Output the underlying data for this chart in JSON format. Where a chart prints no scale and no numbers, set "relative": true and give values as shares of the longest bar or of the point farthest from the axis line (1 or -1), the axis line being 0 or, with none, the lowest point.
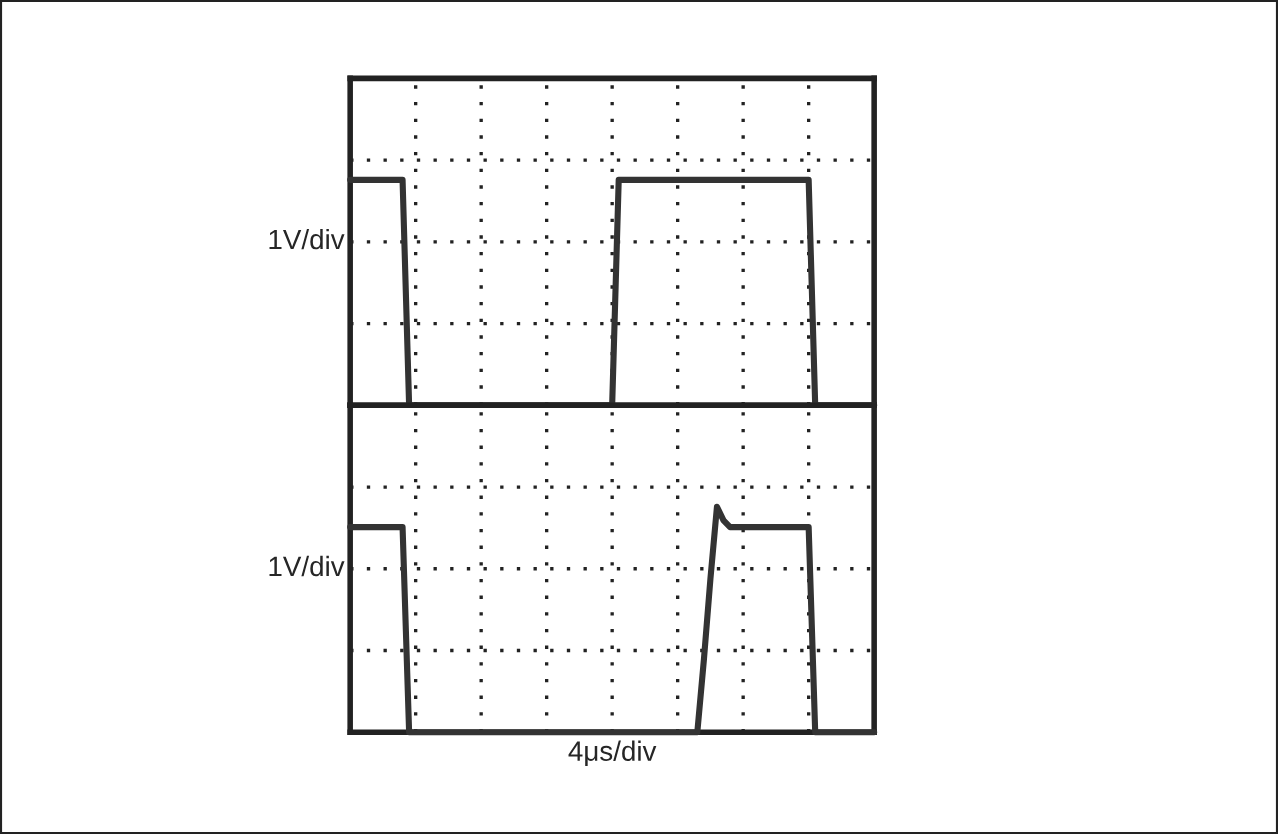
{
  "chart_data": [
    {
      "type": "line",
      "relative": true,
      "ylabel": "1V/div",
      "grid": true,
      "tick_labels": false,
      "categories": [
        null,
        null,
        null,
        null,
        null,
        null,
        null,
        null,
        null,
        null,
        null,
        null,
        null,
        null,
        null,
        null,
        null,
        null,
        null,
        null,
        null,
        null,
        null,
        null,
        null,
        null,
        null,
        null,
        null,
        null,
        null,
        null,
        null,
        null,
        null,
        null,
        null,
        null,
        null,
        null,
        null,
        null,
        null,
        null,
        null,
        null,
        null,
        null,
        null,
        null,
        null,
        null,
        null,
        null,
        null,
        null,
        null,
        null,
        null,
        null,
        null,
        null,
        null,
        null,
        null,
        null,
        null,
        null,
        null,
        null,
        null,
        null,
        null,
        null,
        null,
        null,
        null,
        null,
        null,
        null,
        null
      ],
      "series": [
        {
          "color": "#333333",
          "values": [
            1,
            1,
            1,
            1,
            1,
            1,
            1,
            1,
            1,
            0,
            0,
            0,
            0,
            0,
            0,
            0,
            0,
            0,
            0,
            0,
            0,
            0,
            0,
            0,
            0,
            0,
            0,
            0,
            0,
            0,
            0,
            0,
            0,
            0,
            0,
            0,
            0,
            0,
            0,
            0,
            0,
            1,
            1,
            1,
            1,
            1,
            1,
            1,
            1,
            1,
            1,
            1,
            1,
            1,
            1,
            1,
            1,
            1,
            1,
            1,
            1,
            1,
            1,
            1,
            1,
            1,
            1,
            1,
            1,
            1,
            1,
            0,
            0,
            0,
            0,
            0,
            0,
            0,
            0,
            0,
            0
          ]
        }
      ]
    },
    {
      "type": "line",
      "relative": true,
      "ylabel": "1V/div",
      "xlabel": "4μs/div",
      "grid": true,
      "tick_labels": false,
      "categories": [
        null,
        null,
        null,
        null,
        null,
        null,
        null,
        null,
        null,
        null,
        null,
        null,
        null,
        null,
        null,
        null,
        null,
        null,
        null,
        null,
        null,
        null,
        null,
        null,
        null,
        null,
        null,
        null,
        null,
        null,
        null,
        null,
        null,
        null,
        null,
        null,
        null,
        null,
        null,
        null,
        null,
        null,
        null,
        null,
        null,
        null,
        null,
        null,
        null,
        null,
        null,
        null,
        null,
        null,
        null,
        null,
        null,
        null,
        null,
        null,
        null,
        null,
        null,
        null,
        null,
        null,
        null,
        null,
        null,
        null,
        null,
        null,
        null,
        null,
        null,
        null,
        null,
        null,
        null,
        null,
        null
      ],
      "series": [
        {
          "color": "#333333",
          "values": [
            0.91,
            0.91,
            0.91,
            0.91,
            0.91,
            0.91,
            0.91,
            0.91,
            0.91,
            0,
            0,
            0,
            0,
            0,
            0,
            0,
            0,
            0,
            0,
            0,
            0,
            0,
            0,
            0,
            0,
            0,
            0,
            0,
            0,
            0,
            0,
            0,
            0,
            0,
            0,
            0,
            0,
            0,
            0,
            0,
            0,
            0,
            0,
            0,
            0,
            0,
            0,
            0,
            0,
            0,
            0,
            0,
            0,
            0,
            0.32,
            0.68,
            1,
            0.94,
            0.91,
            0.91,
            0.91,
            0.91,
            0.91,
            0.91,
            0.91,
            0.91,
            0.91,
            0.91,
            0.91,
            0.91,
            0.91,
            0,
            0,
            0,
            0,
            0,
            0,
            0,
            0,
            0,
            0
          ]
        }
      ]
    }
  ]
}
